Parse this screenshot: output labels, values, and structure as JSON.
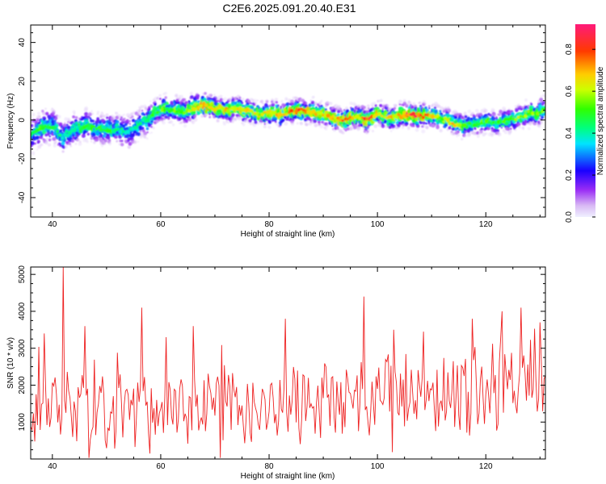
{
  "chart_data": [
    {
      "type": "heatmap",
      "title": "C2E6.2025.091.20.40.E31",
      "xlabel": "Height of straight line (km)",
      "ylabel": "Frequency (Hz)",
      "xlim": [
        36,
        131
      ],
      "ylim": [
        -50,
        49
      ],
      "xticks": [
        "40",
        "60",
        "80",
        "100",
        "120"
      ],
      "yticks": [
        "40",
        "20",
        "0",
        "-20",
        "-40"
      ],
      "colorbar": {
        "label": "Normalized spectral amplitude",
        "range": [
          0,
          0.92
        ],
        "ticks": [
          "0.8",
          "0.6",
          "0.4",
          "0.2",
          "0.0"
        ]
      },
      "ridge": {
        "x": [
          36,
          38,
          40,
          42,
          44,
          46,
          48,
          50,
          52,
          54,
          56,
          58,
          60,
          62,
          64,
          66,
          68,
          70,
          72,
          74,
          76,
          78,
          80,
          82,
          84,
          86,
          88,
          90,
          92,
          94,
          96,
          98,
          100,
          102,
          104,
          106,
          108,
          110,
          112,
          114,
          116,
          118,
          120,
          122,
          124,
          126,
          128,
          131
        ],
        "y": [
          -8,
          -4,
          -3,
          -9,
          -5,
          -3,
          -4,
          -5,
          -5,
          -6,
          -2,
          1,
          6,
          5,
          4,
          6,
          8,
          6,
          5,
          6,
          5,
          3,
          4,
          3,
          4,
          5,
          4,
          3,
          1,
          0,
          2,
          0,
          3,
          1,
          2,
          3,
          2,
          2,
          1,
          -2,
          -3,
          -2,
          -1,
          -2,
          0,
          1,
          3,
          5
        ],
        "peak_amplitude": [
          0.45,
          0.55,
          0.5,
          0.4,
          0.45,
          0.5,
          0.5,
          0.55,
          0.45,
          0.4,
          0.45,
          0.5,
          0.55,
          0.55,
          0.6,
          0.65,
          0.75,
          0.72,
          0.7,
          0.7,
          0.68,
          0.65,
          0.7,
          0.72,
          0.8,
          0.82,
          0.75,
          0.7,
          0.72,
          0.88,
          0.65,
          0.9,
          0.72,
          0.68,
          0.7,
          0.85,
          0.88,
          0.7,
          0.6,
          0.7,
          0.55,
          0.5,
          0.55,
          0.5,
          0.55,
          0.6,
          0.6,
          0.55
        ],
        "spread_hz": [
          9,
          9,
          9,
          9,
          8,
          8,
          8,
          8,
          8,
          9,
          8,
          8,
          7,
          7,
          7,
          7,
          6,
          6,
          6,
          6,
          6,
          6,
          6,
          6,
          6,
          6,
          6,
          6,
          6,
          6,
          6,
          6,
          6,
          6,
          6,
          6,
          6,
          6,
          6,
          6,
          6,
          6,
          6,
          6,
          6,
          6,
          6,
          7
        ]
      }
    },
    {
      "type": "line",
      "xlabel": "Height of straight line (km)",
      "ylabel": "SNR (10 * v/v)",
      "xlim": [
        36,
        131
      ],
      "ylim": [
        0,
        5200
      ],
      "xticks": [
        "40",
        "60",
        "80",
        "100",
        "120"
      ],
      "yticks": [
        "5000",
        "4000",
        "3000",
        "2000",
        "1000"
      ],
      "line_color": "#ee2222",
      "series": [
        {
          "x_step": 0.25,
          "trend": {
            "x": [
              36,
              40,
              50,
              60,
              70,
              80,
              90,
              100,
              110,
              120,
              131
            ],
            "y": [
              1400,
              1450,
              1250,
              1250,
              1450,
              1500,
              1550,
              1550,
              1650,
              1800,
              1950
            ]
          },
          "spike_amplitude": 900,
          "peaks": [
            {
              "x": 42,
              "y": 5200
            },
            {
              "x": 38.5,
              "y": 3400
            },
            {
              "x": 46,
              "y": 3600
            },
            {
              "x": 56.5,
              "y": 4100
            },
            {
              "x": 61,
              "y": 3300
            },
            {
              "x": 66,
              "y": 3600
            },
            {
              "x": 83,
              "y": 3800
            },
            {
              "x": 97.5,
              "y": 4400
            },
            {
              "x": 103,
              "y": 3500
            },
            {
              "x": 108.5,
              "y": 3450
            },
            {
              "x": 117.5,
              "y": 3800
            },
            {
              "x": 123,
              "y": 4000
            },
            {
              "x": 126.5,
              "y": 4100
            },
            {
              "x": 130,
              "y": 3700
            }
          ]
        }
      ]
    }
  ]
}
